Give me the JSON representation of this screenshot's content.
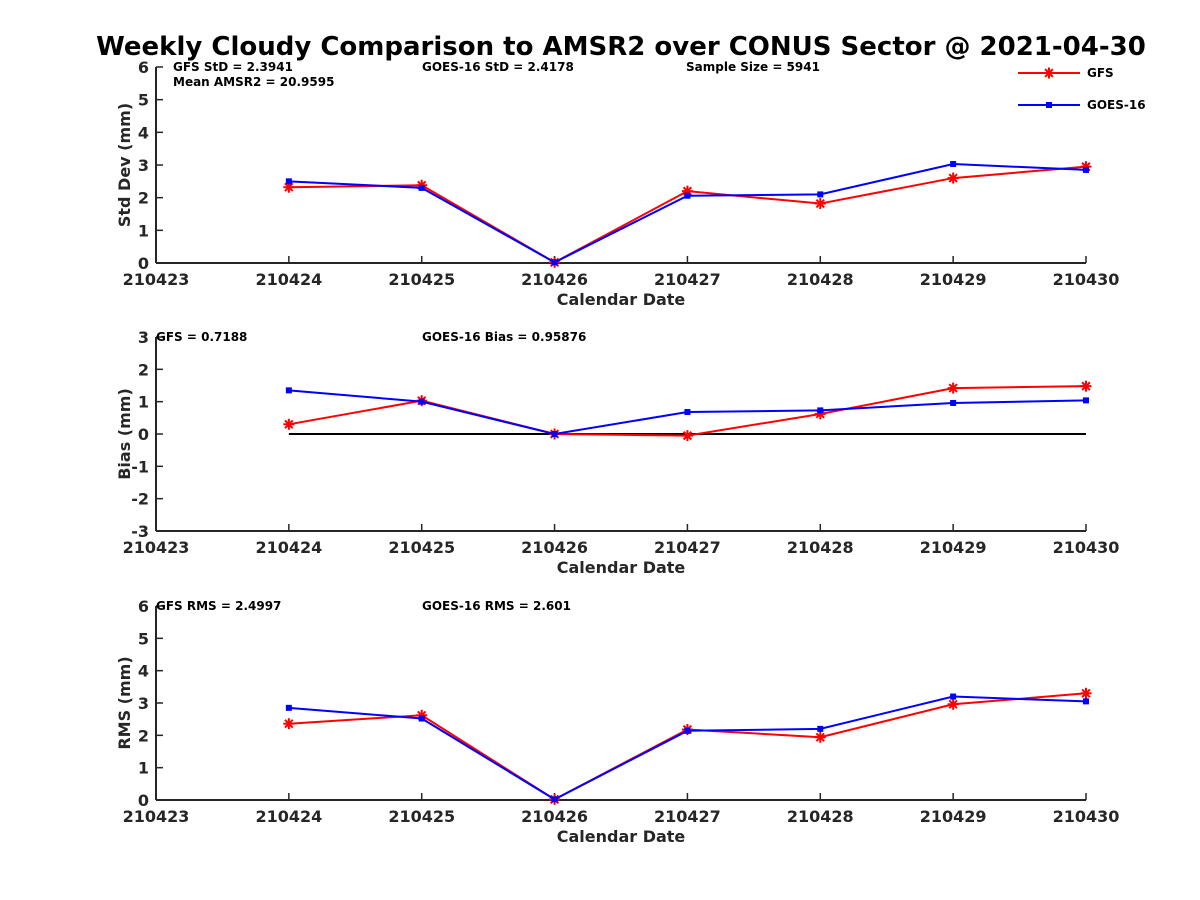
{
  "figure_title": "Weekly Cloudy Comparison to AMSR2 over CONUS Sector @ 2021-04-30",
  "legend": {
    "placement": "top-right",
    "entries": [
      {
        "name": "GFS",
        "color": "#ff0000",
        "marker": "asterisk"
      },
      {
        "name": "GOES-16",
        "color": "#0000ff",
        "marker": "square"
      }
    ]
  },
  "chart_data": [
    {
      "type": "line",
      "panel": "std",
      "xlabel": "Calendar Date",
      "ylabel": "Std Dev (mm)",
      "x": [
        "210423",
        "210424",
        "210425",
        "210426",
        "210427",
        "210428",
        "210429",
        "210430"
      ],
      "ylim": [
        0,
        6
      ],
      "yticks": [
        "0",
        "1",
        "2",
        "3",
        "4",
        "5",
        "6"
      ],
      "grid": false,
      "zero_line": false,
      "series": [
        {
          "name": "GFS",
          "color": "#ff0000",
          "marker": "asterisk",
          "x": [
            "210424",
            "210425",
            "210426",
            "210427",
            "210428",
            "210429",
            "210430"
          ],
          "values": [
            2.32,
            2.38,
            0.02,
            2.2,
            1.82,
            2.6,
            2.95
          ]
        },
        {
          "name": "GOES-16",
          "color": "#0000ff",
          "marker": "square",
          "x": [
            "210424",
            "210425",
            "210426",
            "210427",
            "210428",
            "210429",
            "210430"
          ],
          "values": [
            2.5,
            2.3,
            0.02,
            2.06,
            2.1,
            3.03,
            2.85
          ]
        }
      ],
      "annotations": [
        "GFS StD = 2.3941",
        "Mean AMSR2 = 20.9595",
        "GOES-16 StD = 2.4178",
        "Sample Size = 5941"
      ]
    },
    {
      "type": "line",
      "panel": "bias",
      "xlabel": "Calendar Date",
      "ylabel": "Bias (mm)",
      "x": [
        "210423",
        "210424",
        "210425",
        "210426",
        "210427",
        "210428",
        "210429",
        "210430"
      ],
      "ylim": [
        -3,
        3
      ],
      "yticks": [
        "-3",
        "-2",
        "-1",
        "0",
        "1",
        "2",
        "3"
      ],
      "grid": false,
      "zero_line": true,
      "series": [
        {
          "name": "GFS",
          "color": "#ff0000",
          "marker": "asterisk",
          "x": [
            "210424",
            "210425",
            "210426",
            "210427",
            "210428",
            "210429",
            "210430"
          ],
          "values": [
            0.3,
            1.03,
            0.0,
            -0.05,
            0.62,
            1.42,
            1.48
          ]
        },
        {
          "name": "GOES-16",
          "color": "#0000ff",
          "marker": "square",
          "x": [
            "210424",
            "210425",
            "210426",
            "210427",
            "210428",
            "210429",
            "210430"
          ],
          "values": [
            1.35,
            1.0,
            0.0,
            0.68,
            0.73,
            0.96,
            1.04
          ]
        }
      ],
      "annotations": [
        "GFS = 0.7188",
        "GOES-16 Bias  = 0.95876"
      ]
    },
    {
      "type": "line",
      "panel": "rms",
      "xlabel": "Calendar Date",
      "ylabel": "RMS (mm)",
      "x": [
        "210423",
        "210424",
        "210425",
        "210426",
        "210427",
        "210428",
        "210429",
        "210430"
      ],
      "ylim": [
        0,
        6
      ],
      "yticks": [
        "0",
        "1",
        "2",
        "3",
        "4",
        "5",
        "6"
      ],
      "grid": false,
      "zero_line": false,
      "series": [
        {
          "name": "GFS",
          "color": "#ff0000",
          "marker": "asterisk",
          "x": [
            "210424",
            "210425",
            "210426",
            "210427",
            "210428",
            "210429",
            "210430"
          ],
          "values": [
            2.36,
            2.62,
            0.02,
            2.18,
            1.94,
            2.96,
            3.3
          ]
        },
        {
          "name": "GOES-16",
          "color": "#0000ff",
          "marker": "square",
          "x": [
            "210424",
            "210425",
            "210426",
            "210427",
            "210428",
            "210429",
            "210430"
          ],
          "values": [
            2.85,
            2.52,
            0.02,
            2.14,
            2.2,
            3.2,
            3.05
          ]
        }
      ],
      "annotations": [
        "GFS RMS = 2.4997",
        "GOES-16 RMS = 2.601"
      ]
    }
  ]
}
